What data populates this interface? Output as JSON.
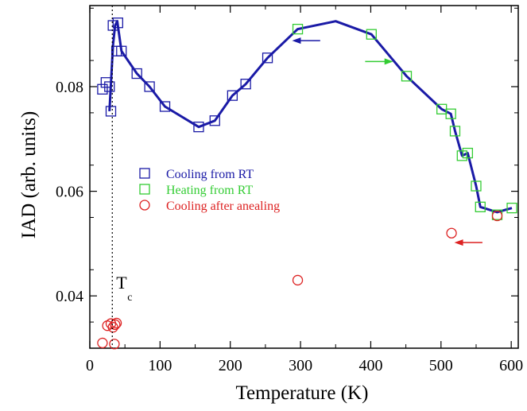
{
  "chart_data": {
    "type": "scatter",
    "xlabel": "Temperature (K)",
    "ylabel": "IAD (arb. units)",
    "xlim": [
      0,
      610
    ],
    "ylim": [
      0.03,
      0.0955
    ],
    "xticks": [
      0,
      100,
      200,
      300,
      400,
      500,
      600
    ],
    "yticks": [
      0.04,
      0.06,
      0.08
    ],
    "xtick_labels": [
      "0",
      "100",
      "200",
      "300",
      "400",
      "500",
      "600"
    ],
    "ytick_labels": [
      "0.04",
      "0.06",
      "0.08"
    ],
    "grid": false,
    "legend_position": "middle-left",
    "annotation": {
      "text": "T",
      "subscript": "c",
      "x": 32
    },
    "series": [
      {
        "name": "Cooling from RT",
        "marker": "square",
        "color": "#1a1aa6",
        "x": [
          18,
          23,
          28,
          30,
          33,
          40,
          38,
          45,
          67,
          85,
          107,
          155,
          178,
          203,
          222,
          253
        ],
        "y": [
          0.0795,
          0.0808,
          0.08,
          0.0753,
          0.0917,
          0.0922,
          0.0868,
          0.0868,
          0.0825,
          0.08,
          0.0762,
          0.0723,
          0.0735,
          0.0783,
          0.0805,
          0.0855
        ]
      },
      {
        "name": "Heating from RT",
        "marker": "square",
        "color": "#33cc33",
        "x": [
          296,
          401,
          451,
          501,
          514,
          520,
          530,
          538,
          550,
          556,
          580,
          601
        ],
        "y": [
          0.091,
          0.09,
          0.082,
          0.0757,
          0.0748,
          0.0715,
          0.0668,
          0.0673,
          0.061,
          0.057,
          0.0555,
          0.0568
        ]
      },
      {
        "name": "Cooling after anealing",
        "marker": "circle",
        "color": "#dd2222",
        "x": [
          18,
          25,
          30,
          33,
          36,
          38,
          35,
          296,
          515,
          580
        ],
        "y": [
          0.031,
          0.0343,
          0.0347,
          0.034,
          0.0345,
          0.0348,
          0.0308,
          0.043,
          0.052,
          0.0553
        ]
      }
    ],
    "line": {
      "color": "#1a1aa6",
      "x": [
        28,
        33,
        36,
        39,
        45,
        67,
        85,
        107,
        155,
        178,
        203,
        222,
        253,
        296,
        350,
        401,
        451,
        501,
        514,
        520,
        530,
        538,
        550,
        556,
        580,
        601
      ],
      "y": [
        0.0753,
        0.088,
        0.0917,
        0.0925,
        0.0868,
        0.0825,
        0.08,
        0.0762,
        0.0723,
        0.0735,
        0.0783,
        0.0805,
        0.0855,
        0.091,
        0.0925,
        0.09,
        0.082,
        0.0757,
        0.0748,
        0.0715,
        0.0668,
        0.0673,
        0.061,
        0.057,
        0.056,
        0.0568
      ]
    },
    "arrows": [
      {
        "direction": "left",
        "color": "#1a1aa6",
        "x_from": 328,
        "x_to": 288,
        "y": 0.0888
      },
      {
        "direction": "right",
        "color": "#33cc33",
        "x_from": 392,
        "x_to": 432,
        "y": 0.0848
      },
      {
        "direction": "left",
        "color": "#dd2222",
        "x_from": 559,
        "x_to": 519,
        "y": 0.0502
      }
    ]
  }
}
